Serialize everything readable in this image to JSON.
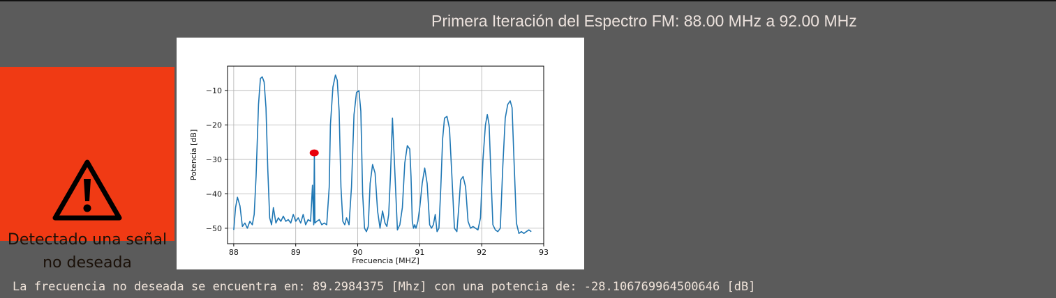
{
  "page": {
    "title": "Primera Iteración del Espectro FM: 88.00 MHz a 92.00 MHz",
    "footer": "La frecuencia no deseada se encuentra en: 89.2984375 [Mhz] con una potencia de: -28.106769964500646 [dB]"
  },
  "alert": {
    "icon": "warning-icon",
    "line1": "Detectado una señal",
    "line2": "no deseada",
    "color": "#f03a14"
  },
  "chart_data": {
    "type": "line",
    "title": "",
    "xlabel": "Frecuencia [MHZ]",
    "ylabel": "Potencia [dB]",
    "xlim": [
      87.9,
      93.0
    ],
    "ylim": [
      -54.5,
      -2.9
    ],
    "xticks": [
      88,
      89,
      90,
      91,
      92,
      93
    ],
    "yticks": [
      -10,
      -20,
      -30,
      -40,
      -50
    ],
    "grid": true,
    "line_color": "#1f77b4",
    "series": [
      {
        "x": [
          88.0,
          88.03,
          88.06,
          88.1,
          88.14,
          88.18,
          88.22,
          88.26,
          88.3,
          88.33,
          88.36,
          88.4,
          88.43,
          88.46,
          88.49,
          88.52,
          88.55,
          88.58,
          88.61,
          88.64,
          88.68,
          88.72,
          88.76,
          88.8,
          88.84,
          88.88,
          88.92,
          88.96,
          89.0,
          89.04,
          89.08,
          89.12,
          89.16,
          89.2,
          89.24,
          89.27,
          89.29,
          89.3,
          89.31,
          89.34,
          89.38,
          89.42,
          89.46,
          89.5,
          89.54,
          89.56,
          89.6,
          89.64,
          89.67,
          89.7,
          89.73,
          89.76,
          89.79,
          89.82,
          89.86,
          89.9,
          89.94,
          89.98,
          90.02,
          90.05,
          90.08,
          90.11,
          90.14,
          90.17,
          90.2,
          90.24,
          90.28,
          90.32,
          90.36,
          90.4,
          90.44,
          90.47,
          90.5,
          90.53,
          90.56,
          90.6,
          90.64,
          90.68,
          90.72,
          90.76,
          90.8,
          90.84,
          90.86,
          90.88,
          90.9,
          90.92,
          90.94,
          90.97,
          91.0,
          91.04,
          91.08,
          91.12,
          91.16,
          91.19,
          91.22,
          91.25,
          91.28,
          91.31,
          91.34,
          91.37,
          91.4,
          91.44,
          91.48,
          91.52,
          91.56,
          91.6,
          91.63,
          91.66,
          91.7,
          91.74,
          91.78,
          91.82,
          91.86,
          91.9,
          91.94,
          91.98,
          92.02,
          92.06,
          92.09,
          92.12,
          92.15,
          92.18,
          92.22,
          92.26,
          92.3,
          92.34,
          92.38,
          92.42,
          92.46,
          92.49,
          92.52,
          92.56,
          92.6,
          92.64,
          92.68,
          92.72,
          92.76,
          92.8
        ],
        "y": [
          -50.5,
          -44.0,
          -41.0,
          -43.5,
          -49.5,
          -48.5,
          -50.0,
          -48.0,
          -49.0,
          -46.0,
          -35.0,
          -14.0,
          -6.5,
          -6.0,
          -7.5,
          -15.0,
          -33.0,
          -47.0,
          -49.0,
          -44.0,
          -48.5,
          -47.0,
          -48.0,
          -46.5,
          -48.0,
          -47.5,
          -48.5,
          -46.0,
          -48.0,
          -47.0,
          -48.5,
          -46.0,
          -49.0,
          -47.5,
          -48.0,
          -37.5,
          -49.0,
          -28.1,
          -48.5,
          -48.0,
          -47.5,
          -49.0,
          -48.5,
          -49.0,
          -38.0,
          -20.0,
          -9.0,
          -5.5,
          -7.0,
          -16.0,
          -38.0,
          -48.0,
          -49.0,
          -47.0,
          -49.0,
          -38.0,
          -17.0,
          -10.5,
          -10.0,
          -16.0,
          -40.0,
          -50.0,
          -51.0,
          -49.5,
          -37.0,
          -31.5,
          -34.0,
          -45.0,
          -50.0,
          -45.0,
          -48.5,
          -49.5,
          -46.0,
          -34.0,
          -18.0,
          -34.0,
          -50.5,
          -49.0,
          -44.0,
          -31.0,
          -26.0,
          -27.0,
          -35.0,
          -48.0,
          -50.0,
          -49.0,
          -50.0,
          -48.0,
          -44.0,
          -37.0,
          -32.5,
          -37.0,
          -49.0,
          -50.0,
          -49.0,
          -46.0,
          -51.0,
          -50.0,
          -38.0,
          -24.0,
          -18.0,
          -17.5,
          -21.0,
          -35.0,
          -50.0,
          -51.0,
          -44.0,
          -36.0,
          -35.0,
          -38.0,
          -48.0,
          -50.0,
          -49.5,
          -50.0,
          -50.5,
          -47.0,
          -30.0,
          -20.0,
          -17.0,
          -20.0,
          -35.0,
          -49.0,
          -50.5,
          -51.0,
          -50.0,
          -32.0,
          -18.0,
          -14.0,
          -13.0,
          -15.0,
          -30.0,
          -48.5,
          -51.5,
          -51.0,
          -51.5,
          -51.0,
          -50.5,
          -51.0
        ]
      }
    ],
    "marker": {
      "x": 89.2984375,
      "y": -28.106769964500646,
      "color": "#e8000b"
    }
  }
}
